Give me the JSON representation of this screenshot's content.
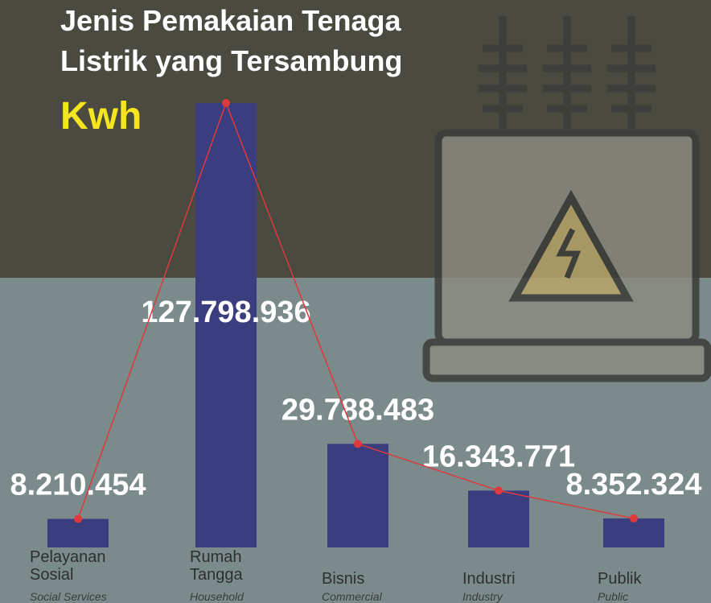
{
  "chart_data": {
    "type": "bar",
    "title": [
      "Jenis Pemakaian Tenaga",
      "Listrik yang Tersambung"
    ],
    "subtitle": "Kwh",
    "categories": [
      "Pelayanan Sosial",
      "Rumah Tangga",
      "Bisnis",
      "Industri",
      "Publik"
    ],
    "categories_en": [
      "Social Services",
      "Household",
      "Commercial",
      "Industry",
      "Public"
    ],
    "values": [
      8210454,
      127798936,
      29788483,
      16343771,
      8352324
    ],
    "value_labels": [
      "8.210.454",
      "127.798.936",
      "29.788.483",
      "16.343.771",
      "8.352.324"
    ],
    "color": "#3a3d7e",
    "line_color": "#e0393b"
  }
}
